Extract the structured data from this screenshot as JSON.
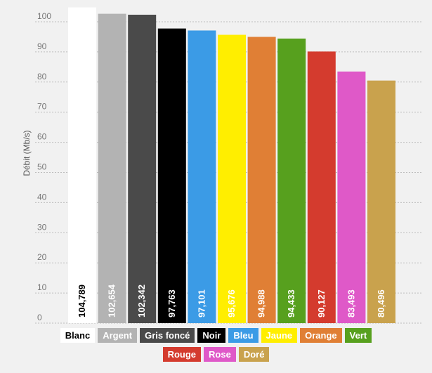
{
  "chart_data": {
    "type": "bar",
    "title": "",
    "xlabel": "",
    "ylabel": "Débit (Mb/s)",
    "ylim": [
      0,
      105
    ],
    "yticks": [
      0,
      10,
      20,
      30,
      40,
      50,
      60,
      70,
      80,
      90,
      100
    ],
    "grid": true,
    "legend_position": "bottom",
    "categories": [
      "Blanc",
      "Argent",
      "Gris foncé",
      "Noir",
      "Bleu",
      "Jaune",
      "Orange",
      "Vert",
      "Rouge",
      "Rose",
      "Doré"
    ],
    "values": [
      104.789,
      102.654,
      102.342,
      97.763,
      97.101,
      95.676,
      94.988,
      94.433,
      90.127,
      83.493,
      80.496
    ],
    "value_labels": [
      "104,789",
      "102,654",
      "102,342",
      "97,763",
      "97,101",
      "95,676",
      "94,988",
      "94,433",
      "90,127",
      "83,493",
      "80,496"
    ],
    "colors": [
      "#ffffff",
      "#b3b3b3",
      "#4a4a4a",
      "#000000",
      "#3b9be6",
      "#ffee00",
      "#e07f35",
      "#57a01e",
      "#d43b2e",
      "#df59c8",
      "#c9a24d"
    ],
    "label_colors": [
      "#000000",
      "#ffffff",
      "#ffffff",
      "#ffffff",
      "#ffffff",
      "#ffffff",
      "#ffffff",
      "#ffffff",
      "#ffffff",
      "#ffffff",
      "#ffffff"
    ]
  }
}
